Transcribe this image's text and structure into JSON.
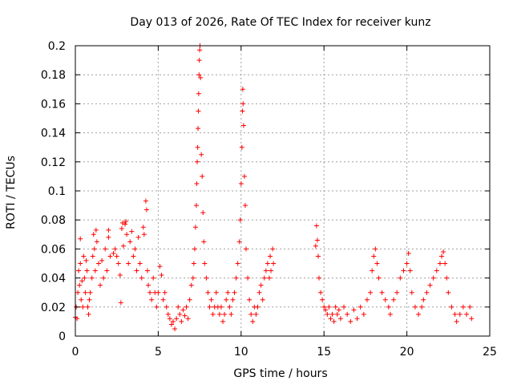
{
  "chart_data": {
    "type": "scatter",
    "title": "Day 013 of 2026, Rate Of TEC Index for receiver kunz",
    "xlabel": "GPS time / hours",
    "ylabel": "ROTI / TECUs",
    "xlim": [
      0,
      25
    ],
    "ylim": [
      0,
      0.2
    ],
    "x_ticks": [
      0,
      5,
      10,
      15,
      20,
      25
    ],
    "y_ticks": [
      0,
      0.02,
      0.04,
      0.06,
      0.08,
      0.1,
      0.12,
      0.14,
      0.16,
      0.18,
      0.2
    ],
    "x_tick_labels": [
      "0",
      "5",
      "10",
      "15",
      "20",
      "25"
    ],
    "y_tick_labels": [
      "0",
      "0.02",
      "0.04",
      "0.06",
      "0.08",
      "0.1",
      "0.12",
      "0.14",
      "0.16",
      "0.18",
      "0.2"
    ],
    "grid": true,
    "marker": "+",
    "color": "#ff0000",
    "series": [
      {
        "points": [
          [
            0.0,
            0.013
          ],
          [
            0.05,
            0.02
          ],
          [
            0.1,
            0.012
          ],
          [
            0.15,
            0.03
          ],
          [
            0.2,
            0.045
          ],
          [
            0.25,
            0.035
          ],
          [
            0.3,
            0.05
          ],
          [
            0.3,
            0.067
          ],
          [
            0.35,
            0.025
          ],
          [
            0.4,
            0.038
          ],
          [
            0.45,
            0.02
          ],
          [
            0.5,
            0.055
          ],
          [
            0.55,
            0.04
          ],
          [
            0.6,
            0.03
          ],
          [
            0.65,
            0.052
          ],
          [
            0.7,
            0.045
          ],
          [
            0.75,
            0.02
          ],
          [
            0.8,
            0.015
          ],
          [
            0.85,
            0.025
          ],
          [
            0.9,
            0.03
          ],
          [
            1.0,
            0.04
          ],
          [
            1.05,
            0.055
          ],
          [
            1.1,
            0.07
          ],
          [
            1.15,
            0.06
          ],
          [
            1.2,
            0.045
          ],
          [
            1.25,
            0.073
          ],
          [
            1.3,
            0.065
          ],
          [
            1.4,
            0.05
          ],
          [
            1.5,
            0.035
          ],
          [
            1.6,
            0.052
          ],
          [
            1.7,
            0.04
          ],
          [
            1.8,
            0.06
          ],
          [
            1.9,
            0.045
          ],
          [
            2.0,
            0.068
          ],
          [
            2.0,
            0.073
          ],
          [
            2.1,
            0.055
          ],
          [
            2.3,
            0.057
          ],
          [
            2.4,
            0.06
          ],
          [
            2.5,
            0.055
          ],
          [
            2.6,
            0.05
          ],
          [
            2.7,
            0.042
          ],
          [
            2.75,
            0.023
          ],
          [
            2.8,
            0.074
          ],
          [
            2.85,
            0.078
          ],
          [
            2.9,
            0.062
          ],
          [
            3.0,
            0.077
          ],
          [
            3.05,
            0.079
          ],
          [
            3.1,
            0.07
          ],
          [
            3.2,
            0.05
          ],
          [
            3.3,
            0.065
          ],
          [
            3.4,
            0.072
          ],
          [
            3.5,
            0.055
          ],
          [
            3.6,
            0.06
          ],
          [
            3.7,
            0.045
          ],
          [
            3.8,
            0.068
          ],
          [
            3.9,
            0.05
          ],
          [
            4.0,
            0.04
          ],
          [
            4.1,
            0.075
          ],
          [
            4.15,
            0.07
          ],
          [
            4.25,
            0.093
          ],
          [
            4.3,
            0.087
          ],
          [
            4.35,
            0.045
          ],
          [
            4.4,
            0.035
          ],
          [
            4.5,
            0.03
          ],
          [
            4.6,
            0.025
          ],
          [
            4.7,
            0.04
          ],
          [
            4.8,
            0.03
          ],
          [
            4.9,
            0.02
          ],
          [
            5.0,
            0.03
          ],
          [
            5.1,
            0.048
          ],
          [
            5.2,
            0.042
          ],
          [
            5.3,
            0.025
          ],
          [
            5.4,
            0.03
          ],
          [
            5.5,
            0.02
          ],
          [
            5.6,
            0.015
          ],
          [
            5.7,
            0.012
          ],
          [
            5.8,
            0.008
          ],
          [
            5.9,
            0.01
          ],
          [
            6.0,
            0.005
          ],
          [
            6.1,
            0.012
          ],
          [
            6.2,
            0.02
          ],
          [
            6.3,
            0.015
          ],
          [
            6.4,
            0.01
          ],
          [
            6.5,
            0.018
          ],
          [
            6.6,
            0.014
          ],
          [
            6.7,
            0.02
          ],
          [
            6.8,
            0.012
          ],
          [
            6.9,
            0.025
          ],
          [
            7.0,
            0.035
          ],
          [
            7.1,
            0.04
          ],
          [
            7.15,
            0.05
          ],
          [
            7.2,
            0.06
          ],
          [
            7.25,
            0.075
          ],
          [
            7.3,
            0.09
          ],
          [
            7.32,
            0.105
          ],
          [
            7.35,
            0.12
          ],
          [
            7.38,
            0.13
          ],
          [
            7.4,
            0.143
          ],
          [
            7.42,
            0.155
          ],
          [
            7.44,
            0.167
          ],
          [
            7.46,
            0.18
          ],
          [
            7.48,
            0.19
          ],
          [
            7.5,
            0.197
          ],
          [
            7.52,
            0.2
          ],
          [
            7.55,
            0.178
          ],
          [
            7.6,
            0.125
          ],
          [
            7.65,
            0.11
          ],
          [
            7.7,
            0.085
          ],
          [
            7.75,
            0.065
          ],
          [
            7.8,
            0.05
          ],
          [
            7.9,
            0.04
          ],
          [
            8.0,
            0.03
          ],
          [
            8.1,
            0.02
          ],
          [
            8.2,
            0.025
          ],
          [
            8.3,
            0.015
          ],
          [
            8.4,
            0.02
          ],
          [
            8.5,
            0.03
          ],
          [
            8.6,
            0.02
          ],
          [
            8.7,
            0.015
          ],
          [
            8.8,
            0.02
          ],
          [
            8.9,
            0.01
          ],
          [
            9.0,
            0.015
          ],
          [
            9.1,
            0.025
          ],
          [
            9.2,
            0.03
          ],
          [
            9.3,
            0.02
          ],
          [
            9.4,
            0.015
          ],
          [
            9.5,
            0.025
          ],
          [
            9.6,
            0.03
          ],
          [
            9.7,
            0.04
          ],
          [
            9.8,
            0.05
          ],
          [
            9.9,
            0.065
          ],
          [
            9.95,
            0.08
          ],
          [
            10.0,
            0.105
          ],
          [
            10.05,
            0.13
          ],
          [
            10.08,
            0.155
          ],
          [
            10.1,
            0.17
          ],
          [
            10.12,
            0.16
          ],
          [
            10.15,
            0.145
          ],
          [
            10.2,
            0.11
          ],
          [
            10.25,
            0.09
          ],
          [
            10.3,
            0.06
          ],
          [
            10.4,
            0.04
          ],
          [
            10.5,
            0.025
          ],
          [
            10.6,
            0.015
          ],
          [
            10.7,
            0.01
          ],
          [
            10.8,
            0.02
          ],
          [
            10.9,
            0.015
          ],
          [
            11.0,
            0.02
          ],
          [
            11.1,
            0.03
          ],
          [
            11.2,
            0.035
          ],
          [
            11.3,
            0.025
          ],
          [
            11.4,
            0.04
          ],
          [
            11.5,
            0.045
          ],
          [
            11.6,
            0.05
          ],
          [
            11.7,
            0.04
          ],
          [
            11.75,
            0.055
          ],
          [
            11.8,
            0.045
          ],
          [
            11.9,
            0.06
          ],
          [
            11.95,
            0.05
          ],
          [
            14.5,
            0.062
          ],
          [
            14.55,
            0.076
          ],
          [
            14.6,
            0.066
          ],
          [
            14.65,
            0.055
          ],
          [
            14.7,
            0.04
          ],
          [
            14.8,
            0.03
          ],
          [
            14.9,
            0.025
          ],
          [
            15.0,
            0.02
          ],
          [
            15.1,
            0.018
          ],
          [
            15.2,
            0.015
          ],
          [
            15.3,
            0.02
          ],
          [
            15.4,
            0.012
          ],
          [
            15.5,
            0.015
          ],
          [
            15.6,
            0.01
          ],
          [
            15.7,
            0.02
          ],
          [
            15.8,
            0.015
          ],
          [
            15.9,
            0.018
          ],
          [
            16.0,
            0.012
          ],
          [
            16.2,
            0.02
          ],
          [
            16.4,
            0.015
          ],
          [
            16.6,
            0.01
          ],
          [
            16.8,
            0.018
          ],
          [
            17.0,
            0.012
          ],
          [
            17.2,
            0.02
          ],
          [
            17.4,
            0.015
          ],
          [
            17.6,
            0.025
          ],
          [
            17.8,
            0.03
          ],
          [
            17.9,
            0.045
          ],
          [
            18.0,
            0.055
          ],
          [
            18.1,
            0.06
          ],
          [
            18.2,
            0.05
          ],
          [
            18.3,
            0.04
          ],
          [
            18.5,
            0.03
          ],
          [
            18.7,
            0.025
          ],
          [
            18.9,
            0.02
          ],
          [
            19.0,
            0.015
          ],
          [
            19.2,
            0.025
          ],
          [
            19.4,
            0.03
          ],
          [
            19.6,
            0.04
          ],
          [
            19.8,
            0.045
          ],
          [
            20.0,
            0.05
          ],
          [
            20.1,
            0.057
          ],
          [
            20.2,
            0.045
          ],
          [
            20.3,
            0.03
          ],
          [
            20.5,
            0.02
          ],
          [
            20.7,
            0.015
          ],
          [
            20.9,
            0.02
          ],
          [
            21.0,
            0.025
          ],
          [
            21.2,
            0.03
          ],
          [
            21.4,
            0.035
          ],
          [
            21.6,
            0.04
          ],
          [
            21.8,
            0.045
          ],
          [
            22.0,
            0.05
          ],
          [
            22.1,
            0.055
          ],
          [
            22.2,
            0.058
          ],
          [
            22.3,
            0.05
          ],
          [
            22.4,
            0.04
          ],
          [
            22.5,
            0.03
          ],
          [
            22.7,
            0.02
          ],
          [
            22.9,
            0.015
          ],
          [
            23.0,
            0.01
          ],
          [
            23.2,
            0.015
          ],
          [
            23.4,
            0.02
          ],
          [
            23.6,
            0.015
          ],
          [
            23.8,
            0.02
          ],
          [
            23.9,
            0.012
          ]
        ]
      }
    ]
  }
}
